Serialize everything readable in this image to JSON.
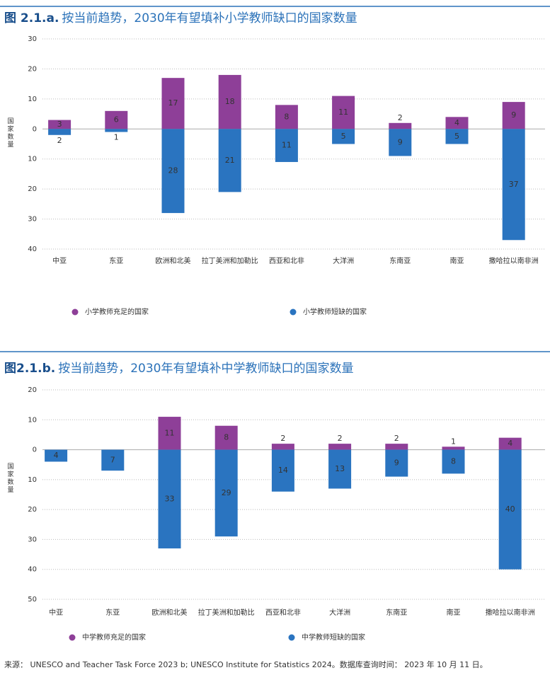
{
  "chart_data": [
    {
      "type": "bar",
      "label": "图 2.1.a.",
      "title": "按当前趋势，2030年有望填补小学教师缺口的国家数量",
      "y_label": "国家数量",
      "categories": [
        "中亚",
        "东亚",
        "欧洲和北美",
        "拉丁美洲和加勒比",
        "西亚和北非",
        "大洋洲",
        "东南亚",
        "南亚",
        "撒哈拉以南非洲"
      ],
      "series": [
        {
          "name": "小学教师充足的国家",
          "color": "#8e3f98",
          "values": [
            3,
            6,
            17,
            18,
            8,
            11,
            2,
            4,
            9
          ]
        },
        {
          "name": "小学教师短缺的国家",
          "color": "#2a74c0",
          "values": [
            -2,
            -1,
            -28,
            -21,
            -11,
            -5,
            -9,
            -5,
            -37
          ],
          "value_labels": [
            "2",
            "1",
            "28",
            "21",
            "11",
            "5",
            "9",
            "5",
            "37"
          ]
        }
      ],
      "ylim": [
        -40,
        30
      ],
      "yticks": [
        30,
        20,
        10,
        0,
        {
          "value": -10,
          "label": "10"
        },
        {
          "value": -20,
          "label": "20"
        },
        {
          "value": -30,
          "label": "30"
        },
        {
          "value": -40,
          "label": "40"
        }
      ],
      "grid": true
    },
    {
      "type": "bar",
      "label": "图2.1.b.",
      "title": "按当前趋势，2030年有望填补中学教师缺口的国家数量",
      "y_label": "国家数量",
      "categories": [
        "中亚",
        "东亚",
        "欧洲和北美",
        "拉丁美洲和加勒比",
        "西亚和北非",
        "大洋洲",
        "东南亚",
        "南亚",
        "撒哈拉以南非洲"
      ],
      "series": [
        {
          "name": "中学教师充足的国家",
          "color": "#8e3f98",
          "values": [
            null,
            null,
            11,
            8,
            2,
            2,
            2,
            1,
            4
          ]
        },
        {
          "name": "中学教师短缺的国家",
          "color": "#2a74c0",
          "values": [
            -4,
            -7,
            -33,
            -29,
            -14,
            -13,
            -9,
            -8,
            -40
          ],
          "value_labels": [
            "4",
            "7",
            "33",
            "29",
            "14",
            "13",
            "9",
            "8",
            "40"
          ]
        }
      ],
      "ylim": [
        -50,
        20
      ],
      "yticks": [
        20,
        10,
        0,
        {
          "value": -10,
          "label": "10"
        },
        {
          "value": -20,
          "label": "20"
        },
        {
          "value": -30,
          "label": "30"
        },
        {
          "value": -40,
          "label": "40"
        },
        {
          "value": -50,
          "label": "50"
        }
      ],
      "grid": true
    }
  ],
  "source": "来源： UNESCO and Teacher Task Force 2023 b; UNESCO Institute for Statistics 2024。数据库查询时间： 2023 年 10 月 11 日。"
}
